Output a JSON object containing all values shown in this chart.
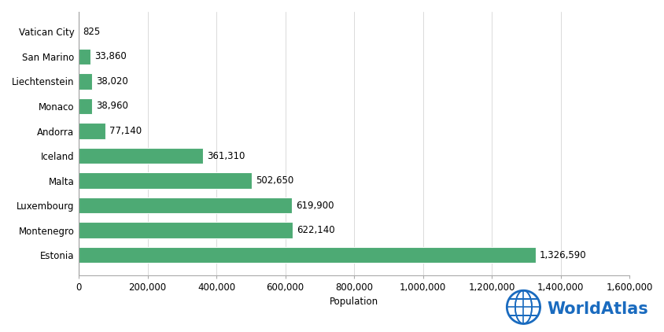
{
  "countries": [
    "Vatican City",
    "San Marino",
    "Liechtenstein",
    "Monaco",
    "Andorra",
    "Iceland",
    "Malta",
    "Luxembourg",
    "Montenegro",
    "Estonia"
  ],
  "populations": [
    825,
    33860,
    38020,
    38960,
    77140,
    361310,
    502650,
    619900,
    622140,
    1326590
  ],
  "labels": [
    "825",
    "33,860",
    "38,020",
    "38,960",
    "77,140",
    "361,310",
    "502,650",
    "619,900",
    "622,140",
    "1,326,590"
  ],
  "bar_color": "#4daa74",
  "background_color": "#ffffff",
  "xlabel": "Population",
  "xlim": [
    0,
    1600000
  ],
  "xticks": [
    0,
    200000,
    400000,
    600000,
    800000,
    1000000,
    1200000,
    1400000,
    1600000
  ],
  "xtick_labels": [
    "0",
    "200,000",
    "400,000",
    "600,000",
    "800,000",
    "1,000,000",
    "1,200,000",
    "1,400,000",
    "1,600,000"
  ],
  "label_fontsize": 8.5,
  "tick_fontsize": 8.5,
  "worldatlas_text": "WorldAtlas",
  "worldatlas_color": "#1a6bbf",
  "figsize": [
    8.45,
    4.22
  ],
  "dpi": 100
}
